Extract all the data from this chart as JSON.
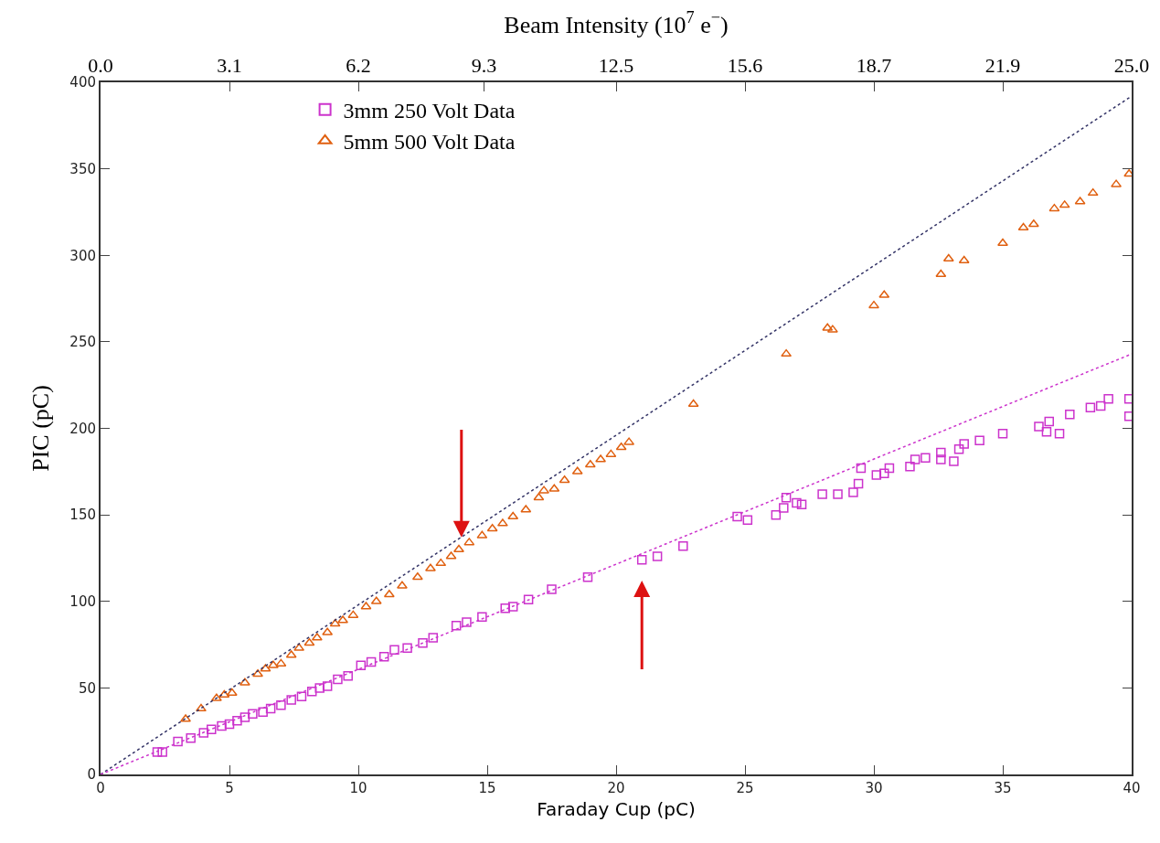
{
  "chart_data": {
    "type": "scatter",
    "xlabel": "Faraday Cup (pC)",
    "ylabel": "PIC (pC)",
    "x2label": "Beam Intensity (10$^{7}$ e$^{−}$)",
    "xlim": [
      0,
      40
    ],
    "xticks": [
      0,
      5,
      10,
      15,
      20,
      25,
      30,
      35,
      40
    ],
    "ylim": [
      0,
      400
    ],
    "yticks": [
      0,
      50,
      100,
      150,
      200,
      250,
      300,
      350,
      400
    ],
    "x2lim": [
      0,
      25
    ],
    "x2ticks": [
      {
        "value": 0,
        "label": "0.0"
      },
      {
        "value": 3.125,
        "label": "3.1"
      },
      {
        "value": 6.25,
        "label": "6.2"
      },
      {
        "value": 9.3,
        "label": "9.3"
      },
      {
        "value": 12.5,
        "label": "12.5"
      },
      {
        "value": 15.625,
        "label": "15.6"
      },
      {
        "value": 18.75,
        "label": "18.7"
      },
      {
        "value": 21.875,
        "label": "21.9"
      },
      {
        "value": 25,
        "label": "25.0"
      }
    ],
    "legend": "top left",
    "series": [
      {
        "name": "3mm 250 Volt Data",
        "color": "#cc33cc",
        "marker": "square",
        "x": [
          2.2,
          2.4,
          3.0,
          3.5,
          4.0,
          4.3,
          4.7,
          5.0,
          5.3,
          5.6,
          5.9,
          6.3,
          6.6,
          7.0,
          7.4,
          7.8,
          8.2,
          8.5,
          8.8,
          9.2,
          9.6,
          10.1,
          10.5,
          11.0,
          11.4,
          11.9,
          12.5,
          12.9,
          13.8,
          14.2,
          14.8,
          15.7,
          16.0,
          16.6,
          17.5,
          18.9,
          21.0,
          21.6,
          22.6,
          24.7,
          25.1,
          26.2,
          26.5,
          26.6,
          27.0,
          27.2,
          28.0,
          28.6,
          29.2,
          29.4,
          29.5,
          30.1,
          30.4,
          30.6,
          31.4,
          31.6,
          32.0,
          32.6,
          32.6,
          33.1,
          33.3,
          33.5,
          34.1,
          35.0,
          36.4,
          36.8,
          36.7,
          37.2,
          37.6,
          38.4,
          38.8,
          39.1,
          39.9,
          39.9
        ],
        "values": [
          13,
          13,
          19,
          21,
          24,
          26,
          28,
          29,
          31,
          33,
          35,
          36,
          38,
          40,
          43,
          45,
          48,
          50,
          51,
          55,
          57,
          63,
          65,
          68,
          72,
          73,
          76,
          79,
          86,
          88,
          91,
          96,
          97,
          101,
          107,
          114,
          124,
          126,
          132,
          149,
          147,
          150,
          154,
          160,
          157,
          156,
          162,
          162,
          163,
          168,
          177,
          173,
          174,
          177,
          178,
          182,
          183,
          186,
          182,
          181,
          188,
          191,
          193,
          197,
          201,
          204,
          198,
          197,
          208,
          212,
          213,
          217,
          217,
          207
        ]
      },
      {
        "name": "5mm 500 Volt Data",
        "color": "#e06010",
        "marker": "triangle",
        "x": [
          3.3,
          3.9,
          4.5,
          4.8,
          5.1,
          5.6,
          6.1,
          6.4,
          6.7,
          7.0,
          7.4,
          7.7,
          8.1,
          8.4,
          8.8,
          9.1,
          9.4,
          9.8,
          10.3,
          10.7,
          11.2,
          11.7,
          12.3,
          12.8,
          13.2,
          13.6,
          13.9,
          14.3,
          14.8,
          15.2,
          15.6,
          16.0,
          16.5,
          17.0,
          17.2,
          17.6,
          18.0,
          18.5,
          19.0,
          19.4,
          19.8,
          20.2,
          20.5,
          23.0,
          26.6,
          28.2,
          28.4,
          30.0,
          30.4,
          32.6,
          32.9,
          33.5,
          35.0,
          35.8,
          36.2,
          37.0,
          37.4,
          38.0,
          38.5,
          39.4,
          39.9
        ],
        "values": [
          32,
          38,
          44,
          46,
          47,
          53,
          58,
          61,
          63,
          64,
          69,
          73,
          76,
          79,
          82,
          87,
          89,
          92,
          97,
          100,
          104,
          109,
          114,
          119,
          122,
          126,
          130,
          134,
          138,
          142,
          145,
          149,
          153,
          160,
          164,
          165,
          170,
          175,
          179,
          182,
          185,
          189,
          192,
          214,
          243,
          258,
          257,
          271,
          277,
          289,
          298,
          297,
          307,
          316,
          318,
          327,
          329,
          331,
          336,
          341,
          347
        ]
      },
      {
        "type": "line",
        "color": "#333366",
        "line_style": "dotted",
        "x": [
          0,
          40
        ],
        "values": [
          0,
          392
        ]
      },
      {
        "type": "line",
        "color": "#cc33cc",
        "line_style": "dotted",
        "x": [
          0,
          40
        ],
        "values": [
          0,
          243
        ]
      }
    ]
  }
}
